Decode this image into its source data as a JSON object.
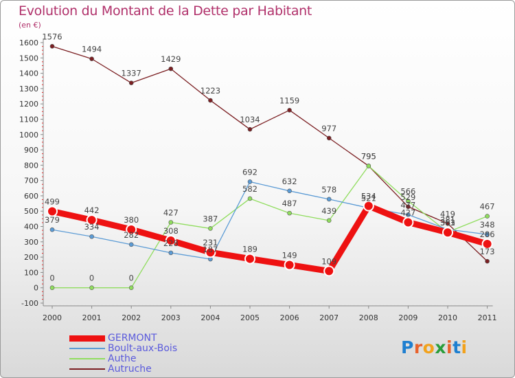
{
  "title": "Evolution du Montant de la Dette par Habitant",
  "unit": "(en €)",
  "logo": {
    "text": "Proxiti",
    "colors": [
      "#1e7fd0",
      "#e8622c",
      "#f2a21c",
      "#2a9d3a",
      "#e8622c",
      "#1e7fd0",
      "#f2a21c"
    ]
  },
  "chart_data": {
    "type": "line",
    "title": "Evolution du Montant de la Dette par Habitant",
    "ylabel": "(en €)",
    "x": [
      "2000",
      "2001",
      "2002",
      "2003",
      "2004",
      "2005",
      "2006",
      "2007",
      "2008",
      "2009",
      "2010",
      "2011"
    ],
    "ylim": [
      -100,
      1600
    ],
    "yticks": [
      -100,
      0,
      100,
      200,
      300,
      400,
      500,
      600,
      700,
      800,
      900,
      1000,
      1100,
      1200,
      1300,
      1400,
      1500,
      1600
    ],
    "grid": false,
    "legend_position": "bottom-left",
    "series": [
      {
        "name": "GERMONT",
        "color": "#ee1111",
        "values": [
          499,
          442,
          380,
          308,
          231,
          189,
          149,
          109,
          534,
          427,
          361,
          286
        ]
      },
      {
        "name": "Boult-aux-Bois",
        "color": "#5b9bd5",
        "values": [
          379,
          334,
          282,
          228,
          187,
          692,
          632,
          578,
          521,
          477,
          381,
          348
        ]
      },
      {
        "name": "Authe",
        "color": "#90dd5e",
        "values": [
          0,
          0,
          0,
          427,
          387,
          582,
          487,
          439,
          795,
          566,
          363,
          467
        ]
      },
      {
        "name": "Autruche",
        "color": "#7b1f22",
        "values": [
          1576,
          1494,
          1337,
          1429,
          1223,
          1034,
          1159,
          977,
          795,
          529,
          419,
          173
        ]
      }
    ]
  }
}
